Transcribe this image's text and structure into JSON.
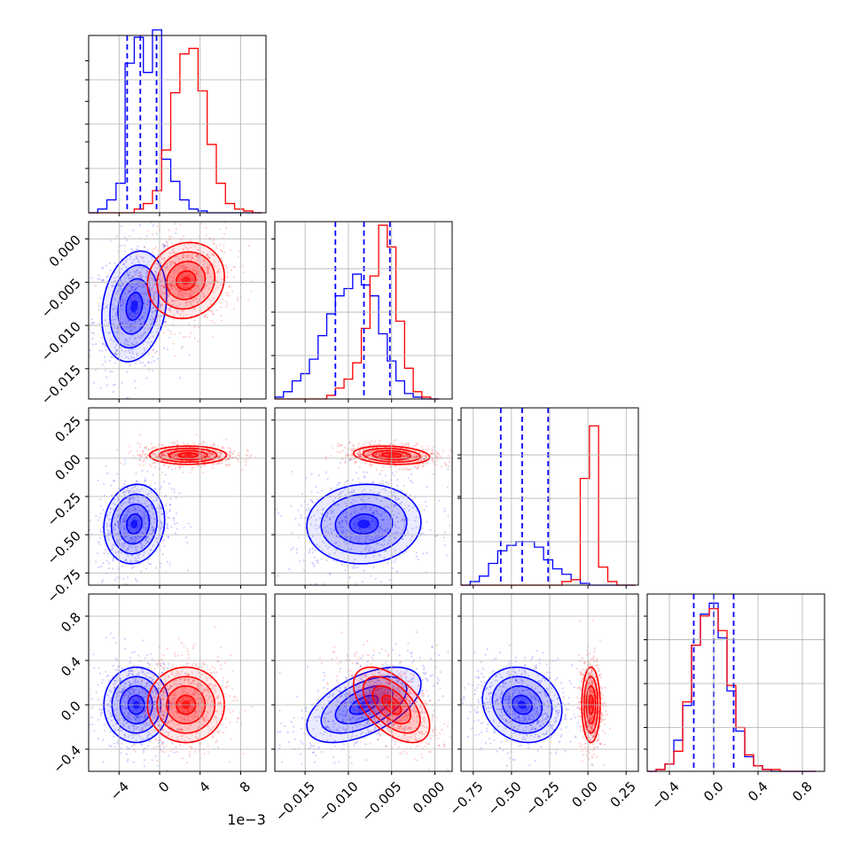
{
  "chart_data": {
    "type": "corner",
    "title": "",
    "grid": true,
    "colors": {
      "run_a": "#0000ff",
      "run_b": "#ff0000"
    },
    "x_offset_label": "1e−3",
    "parameters": [
      {
        "range": [
          -7.0,
          10.5
        ],
        "ticks": [
          -4,
          0,
          4,
          8
        ],
        "tick_labels": [
          "−4",
          "0",
          "4",
          "8"
        ]
      },
      {
        "range": [
          -0.0185,
          0.002
        ],
        "ticks": [
          -0.015,
          -0.01,
          -0.005,
          0.0
        ],
        "tick_labels": [
          "−0.015",
          "−0.010",
          "−0.005",
          "0.000"
        ]
      },
      {
        "range": [
          -0.83,
          0.33
        ],
        "ticks": [
          -0.75,
          -0.5,
          -0.25,
          0.0,
          0.25
        ],
        "tick_labels": [
          "−0.75",
          "−0.50",
          "−0.25",
          "0.00",
          "0.25"
        ]
      },
      {
        "range": [
          -0.6,
          1.0
        ],
        "ticks": [
          -0.4,
          0.0,
          0.4,
          0.8
        ],
        "tick_labels": [
          "−0.4",
          "0.0",
          "0.4",
          "0.8"
        ]
      }
    ],
    "quantiles": [
      [
        -3.2,
        -1.9,
        -0.3
      ],
      [
        -0.0115,
        -0.0082,
        -0.0052
      ],
      [
        -0.57,
        -0.43,
        -0.26
      ],
      [
        -0.18,
        0.0,
        0.18
      ]
    ],
    "hist_ymax": [
      0.96,
      0.98,
      0.98,
      0.97
    ],
    "histograms": [
      {
        "edges": [
          -7.0,
          -6.1,
          -5.2,
          -4.3,
          -3.4,
          -2.5,
          -1.6,
          -0.7,
          0.2,
          1.1,
          2.0,
          2.9,
          3.8,
          4.7,
          5.6,
          6.5,
          7.4,
          8.3,
          9.2,
          10.1
        ],
        "series": [
          {
            "name": "",
            "color": "#0000ff",
            "values": [
              0.0,
              0.02,
              0.07,
              0.16,
              0.81,
              0.95,
              0.76,
              0.99,
              0.29,
              0.17,
              0.07,
              0.02,
              0.01,
              0.0,
              0.0,
              0.0,
              0.0,
              0.0,
              0.0
            ]
          },
          {
            "name": "",
            "color": "#ff0000",
            "values": [
              0.0,
              0.0,
              0.0,
              0.0,
              0.0,
              0.02,
              0.05,
              0.12,
              0.34,
              0.65,
              0.86,
              0.89,
              0.66,
              0.37,
              0.16,
              0.05,
              0.02,
              0.01,
              0.0
            ]
          }
        ]
      },
      {
        "edges": [
          -0.0185,
          -0.0175,
          -0.0165,
          -0.0155,
          -0.0145,
          -0.0135,
          -0.0125,
          -0.0115,
          -0.0105,
          -0.0095,
          -0.0085,
          -0.0075,
          -0.0065,
          -0.0055,
          -0.0045,
          -0.0035,
          -0.0025,
          -0.0015,
          -0.0005,
          0.0005
        ],
        "series": [
          {
            "name": "",
            "color": "#0000ff",
            "values": [
              0.01,
              0.04,
              0.1,
              0.14,
              0.22,
              0.35,
              0.47,
              0.57,
              0.61,
              0.69,
              0.63,
              0.57,
              0.36,
              0.21,
              0.1,
              0.03,
              0.01,
              0.0,
              0.0
            ]
          },
          {
            "name": "",
            "color": "#ff0000",
            "values": [
              0.0,
              0.0,
              0.0,
              0.0,
              0.0,
              0.0,
              0.02,
              0.06,
              0.11,
              0.2,
              0.39,
              0.68,
              0.96,
              0.84,
              0.43,
              0.17,
              0.04,
              0.01,
              0.0
            ]
          }
        ]
      },
      {
        "edges": [
          -0.83,
          -0.77,
          -0.71,
          -0.65,
          -0.59,
          -0.53,
          -0.47,
          -0.41,
          -0.35,
          -0.29,
          -0.23,
          -0.17,
          -0.11,
          -0.05,
          0.01,
          0.07,
          0.13,
          0.19,
          0.25,
          0.31
        ],
        "series": [
          {
            "name": "",
            "color": "#0000ff",
            "values": [
              0.0,
              0.02,
              0.05,
              0.12,
              0.19,
              0.22,
              0.24,
              0.24,
              0.21,
              0.14,
              0.09,
              0.06,
              0.03,
              0.01,
              0.0,
              0.0,
              0.0,
              0.0,
              0.0
            ]
          },
          {
            "name": "",
            "color": "#ff0000",
            "values": [
              0.0,
              0.0,
              0.0,
              0.0,
              0.0,
              0.0,
              0.0,
              0.0,
              0.0,
              0.0,
              0.0,
              0.02,
              0.03,
              0.59,
              0.88,
              0.1,
              0.02,
              0.0,
              0.0
            ]
          }
        ]
      },
      {
        "edges": [
          -0.6,
          -0.52,
          -0.44,
          -0.36,
          -0.28,
          -0.2,
          -0.12,
          -0.04,
          0.04,
          0.12,
          0.2,
          0.28,
          0.36,
          0.44,
          0.52,
          0.6,
          0.68,
          0.76,
          0.84,
          0.92
        ],
        "series": [
          {
            "name": "",
            "color": "#0000ff",
            "values": [
              0.0,
              0.01,
              0.04,
              0.17,
              0.36,
              0.69,
              0.86,
              0.92,
              0.73,
              0.44,
              0.22,
              0.08,
              0.03,
              0.01,
              0.0,
              0.0,
              0.0,
              0.0,
              0.0
            ]
          },
          {
            "name": "",
            "color": "#ff0000",
            "values": [
              0.0,
              0.01,
              0.04,
              0.11,
              0.38,
              0.69,
              0.85,
              0.89,
              0.77,
              0.47,
              0.24,
              0.09,
              0.03,
              0.01,
              0.01,
              0.0,
              0.0,
              0.0,
              0.0
            ]
          }
        ]
      }
    ],
    "joint_2d": [
      {
        "x_param": 0,
        "y_param": 1,
        "series": [
          {
            "color": "#0000ff",
            "mean": [
              -2.5,
              -0.0078
            ],
            "sd": [
              1.6,
              0.0032
            ],
            "rho": 0.2
          },
          {
            "color": "#ff0000",
            "mean": [
              2.6,
              -0.0048
            ],
            "sd": [
              1.9,
              0.0022
            ],
            "rho": 0.1
          }
        ]
      },
      {
        "x_param": 0,
        "y_param": 2,
        "series": [
          {
            "color": "#0000ff",
            "mean": [
              -2.5,
              -0.43
            ],
            "sd": [
              1.5,
              0.13
            ],
            "rho": 0.1
          },
          {
            "color": "#ff0000",
            "mean": [
              2.8,
              0.02
            ],
            "sd": [
              1.9,
              0.03
            ],
            "rho": 0.0
          }
        ]
      },
      {
        "x_param": 1,
        "y_param": 2,
        "series": [
          {
            "color": "#0000ff",
            "mean": [
              -0.0082,
              -0.43
            ],
            "sd": [
              0.0033,
              0.13
            ],
            "rho": 0.05
          },
          {
            "color": "#ff0000",
            "mean": [
              -0.005,
              0.02
            ],
            "sd": [
              0.0022,
              0.03
            ],
            "rho": -0.2
          }
        ]
      },
      {
        "x_param": 0,
        "y_param": 3,
        "series": [
          {
            "color": "#0000ff",
            "mean": [
              -2.3,
              0.0
            ],
            "sd": [
              1.6,
              0.17
            ],
            "rho": 0.0
          },
          {
            "color": "#ff0000",
            "mean": [
              2.6,
              0.0
            ],
            "sd": [
              1.9,
              0.17
            ],
            "rho": 0.0
          }
        ]
      },
      {
        "x_param": 1,
        "y_param": 3,
        "series": [
          {
            "color": "#0000ff",
            "mean": [
              -0.0082,
              0.0
            ],
            "sd": [
              0.0033,
              0.17
            ],
            "rho": 0.55
          },
          {
            "color": "#ff0000",
            "mean": [
              -0.005,
              0.0
            ],
            "sd": [
              0.0022,
              0.17
            ],
            "rho": -0.55
          }
        ]
      },
      {
        "x_param": 2,
        "y_param": 3,
        "series": [
          {
            "color": "#0000ff",
            "mean": [
              -0.43,
              0.0
            ],
            "sd": [
              0.13,
              0.17
            ],
            "rho": -0.15
          },
          {
            "color": "#ff0000",
            "mean": [
              0.02,
              0.0
            ],
            "sd": [
              0.03,
              0.17
            ],
            "rho": 0.0
          }
        ]
      }
    ]
  }
}
